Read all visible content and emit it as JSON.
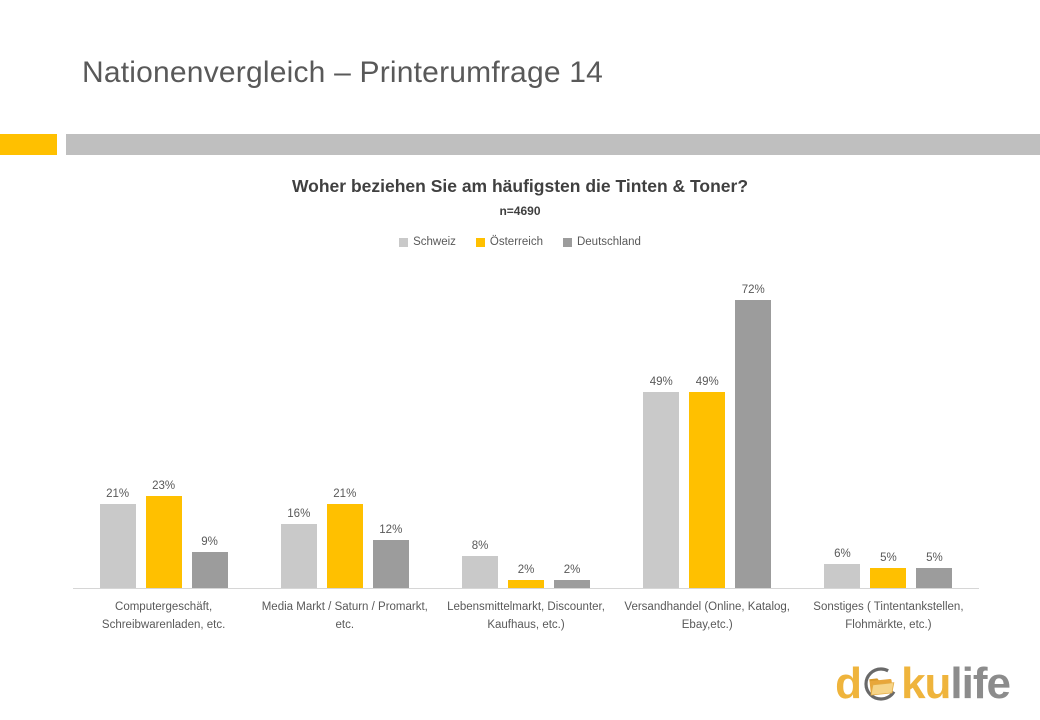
{
  "slide": {
    "title": "Nationenvergleich – Printerumfrage 14"
  },
  "colors": {
    "accent_yellow": "#FFC000",
    "band_gray": "#BFBFBF",
    "axis_line": "#D6D6D6",
    "text_gray": "#595959"
  },
  "chart_data": {
    "type": "bar",
    "title": "Woher beziehen Sie am häufigsten die Tinten & Toner?",
    "subtitle": "n=4690",
    "categories": [
      "Computergeschäft,\nSchreibwarenladen, etc.",
      "Media Markt / Saturn / Promarkt,\netc.",
      "Lebensmittelmarkt, Discounter,\nKaufhaus, etc.)",
      "Versandhandel (Online, Katalog,\nEbay,etc.)",
      "Sonstiges ( Tintentankstellen,\nFlohmärkte, etc.)"
    ],
    "series": [
      {
        "name": "Schweiz",
        "color": "#C9C9C9",
        "values": [
          21,
          16,
          8,
          49,
          6
        ]
      },
      {
        "name": "Österreich",
        "color": "#FFC000",
        "values": [
          23,
          21,
          2,
          49,
          5
        ]
      },
      {
        "name": "Deutschland",
        "color": "#9C9C9C",
        "values": [
          9,
          12,
          2,
          72,
          5
        ]
      }
    ],
    "value_suffix": "%",
    "ylim": [
      0,
      80
    ],
    "grid": false,
    "legend_position": "top",
    "data_labels": true,
    "xlabel": "",
    "ylabel": ""
  },
  "logo": {
    "brand_text": "dokulife",
    "part_d": "d",
    "part_ku": "ku",
    "part_life": "life",
    "icon": "folder-sync-icon"
  }
}
